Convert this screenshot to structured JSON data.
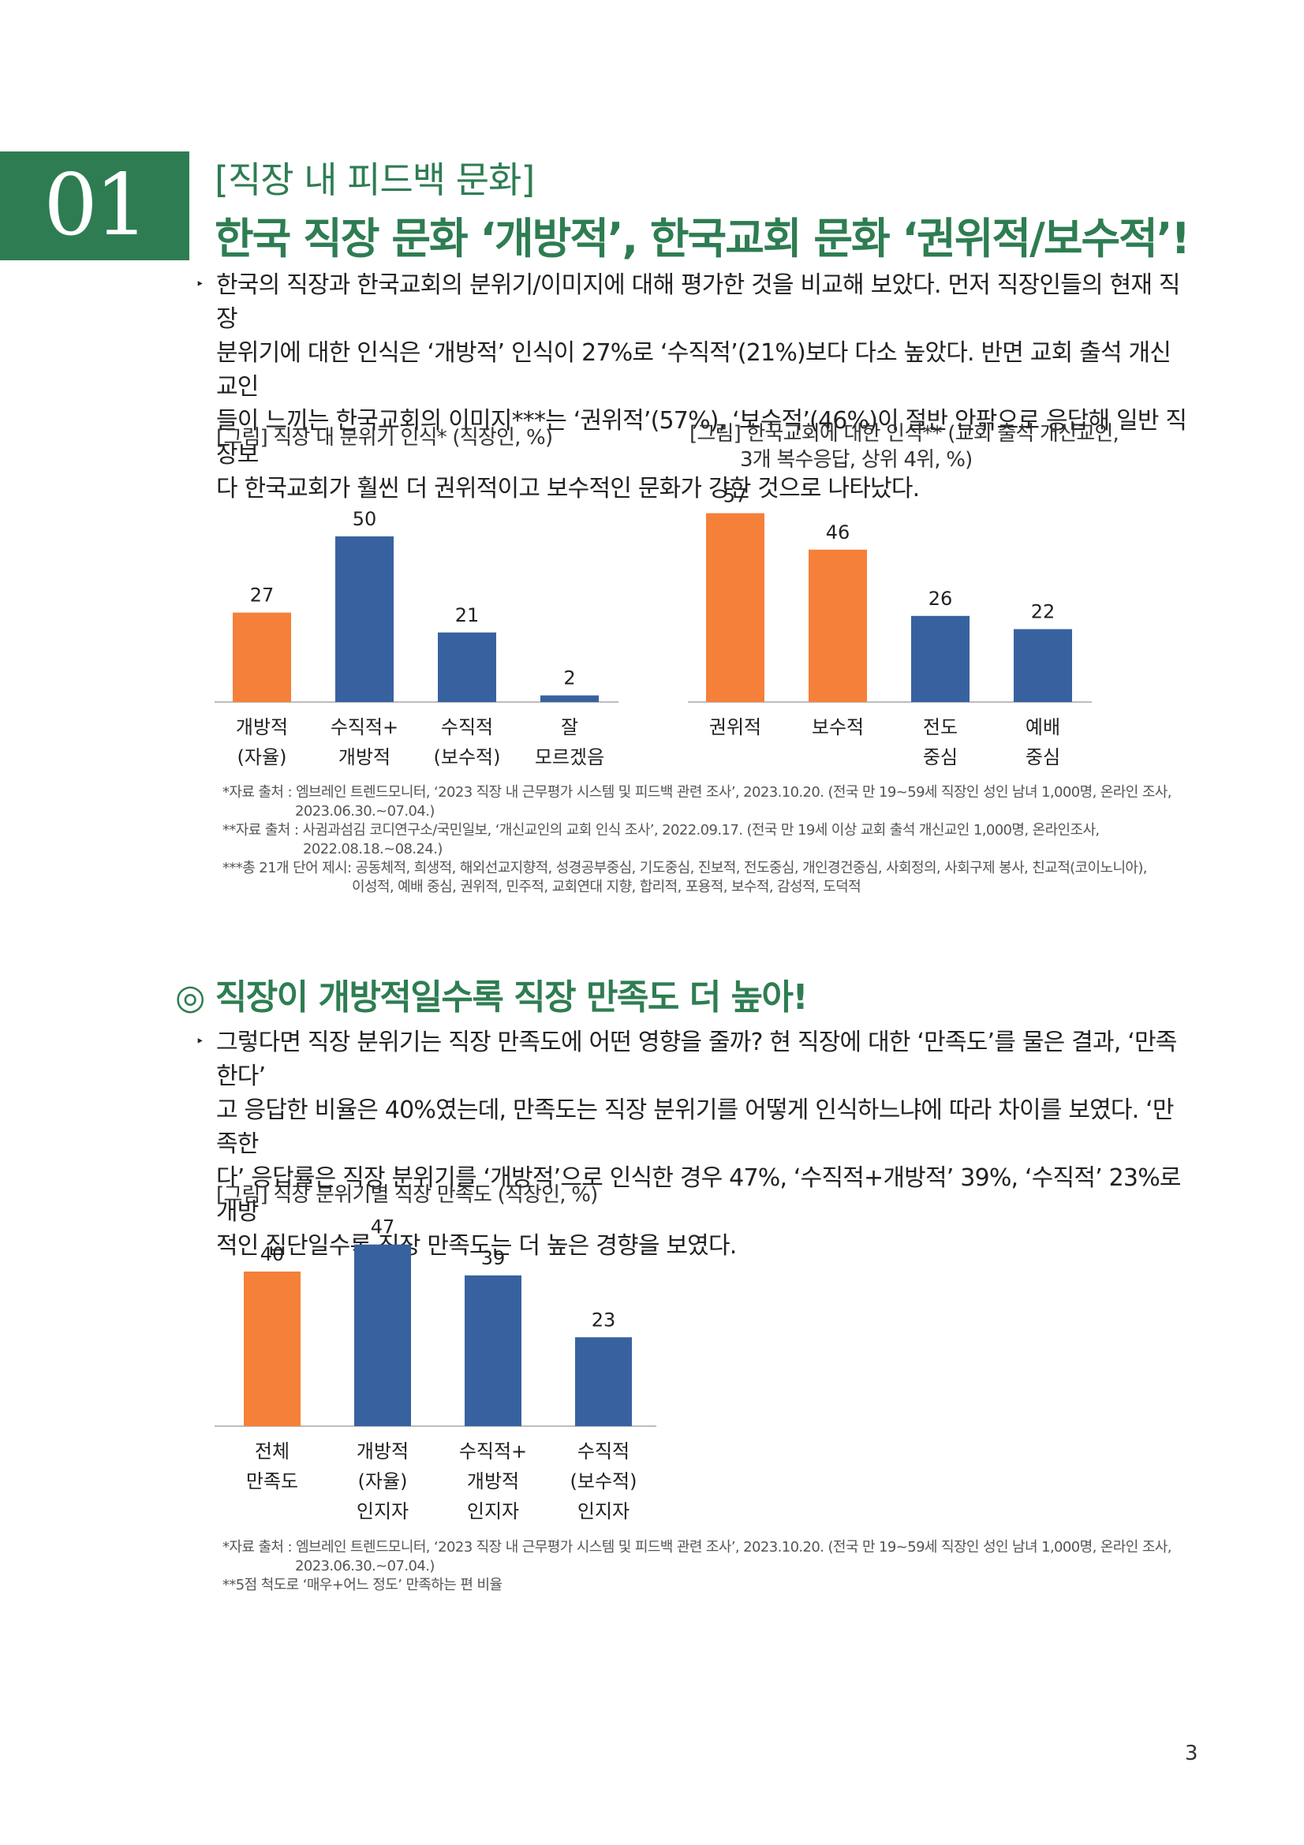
{
  "section": {
    "number": "01",
    "subtitle": "[직장 내 피드백 문화]",
    "title": "한국 직장 문화 ‘개방적’, 한국교회 문화 ‘권위적/보수적’!"
  },
  "para1": {
    "bullet": "‣",
    "lines": [
      "한국의 직장과 한국교회의 분위기/이미지에 대해 평가한 것을 비교해 보았다. 먼저 직장인들의 현재 직장",
      "분위기에 대한 인식은 ‘개방적’ 인식이 27%로 ‘수직적’(21%)보다 다소 높았다. 반면 교회 출석 개신교인",
      "들이 느끼는 한국교회의 이미지***는 ‘권위적’(57%), ‘보수적’(46%)이 절반 안팎으로 응답해 일반 직장보",
      "다 한국교회가 훨씬 더 권위적이고 보수적인 문화가 강한 것으로 나타났다."
    ]
  },
  "chart1_caption": "[그림] 직장 내 분위기 인식* (직장인, %)",
  "chart2_caption": [
    "[그림] 한국교회에 대한 인식** (교회 출석 개신교인,",
    "3개 복수응답, 상위 4위, %)"
  ],
  "chart3_caption": "[그림] 직장 분위기별 직장 만족도 (직장인, %)",
  "chart_data": [
    {
      "type": "bar",
      "title": "[그림] 직장 내 분위기 인식* (직장인, %)",
      "categories": [
        "개방적\n(자율)",
        "수직적+\n개방적",
        "수직적\n(보수적)",
        "잘\n모르겠음"
      ],
      "values": [
        27,
        50,
        21,
        2
      ],
      "colors": [
        "#f5803a",
        "#37629f",
        "#37629f",
        "#37629f"
      ],
      "ylim": [
        0,
        60
      ]
    },
    {
      "type": "bar",
      "title": "[그림] 한국교회에 대한 인식** (교회 출석 개신교인, 3개 복수응답, 상위 4위, %)",
      "categories": [
        "권위적",
        "보수적",
        "전도\n중심",
        "예배\n중심"
      ],
      "values": [
        57,
        46,
        26,
        22
      ],
      "colors": [
        "#f5803a",
        "#f5803a",
        "#37629f",
        "#37629f"
      ],
      "ylim": [
        0,
        60
      ]
    },
    {
      "type": "bar",
      "title": "[그림] 직장 분위기별 직장 만족도 (직장인, %)",
      "categories": [
        "전체\n만족도",
        "개방적\n(자율)\n인지자",
        "수직적+\n개방적\n인지자",
        "수직적\n(보수적)\n인지자"
      ],
      "values": [
        40,
        47,
        39,
        23
      ],
      "colors": [
        "#f5803a",
        "#37629f",
        "#37629f",
        "#37629f"
      ],
      "ylim": [
        0,
        50
      ]
    }
  ],
  "notes1": [
    "*자료 출처 : 엠브레인 트렌드모니터, ‘2023 직장 내 근무평가 시스템 및 피드백 관련 조사’, 2023.10.20. (전국 만 19~59세 직장인 성인 남녀 1,000명, 온라인 조사,",
    "2023.06.30.~07.04.)",
    "**자료 출처 : 사귐과섬김 코디연구소/국민일보, ‘개신교인의 교회 인식 조사’, 2022.09.17. (전국 만 19세 이상 교회 출석 개신교인 1,000명, 온라인조사,",
    "2022.08.18.~08.24.)",
    "***총 21개 단어 제시: 공동체적, 희생적, 해외선교지향적, 성경공부중심, 기도중심, 진보적, 전도중심, 개인경건중심, 사회정의, 사회구제 봉사, 친교적(코이노니아),",
    "이성적, 예배 중심, 권위적, 민주적, 교회연대 지향, 합리적, 포용적, 보수적, 감성적, 도덕적"
  ],
  "section2": {
    "title": "◎ 직장이 개방적일수록 직장 만족도 더 높아!"
  },
  "para2": {
    "bullet": "‣",
    "lines": [
      "그렇다면 직장 분위기는 직장 만족도에 어떤 영향을 줄까? 현 직장에 대한 ‘만족도’를 물은 결과, ‘만족한다’",
      "고 응답한 비율은 40%였는데, 만족도는 직장 분위기를 어떻게 인식하느냐에 따라 차이를 보였다. ‘만족한",
      "다’ 응답률은 직장 분위기를 ‘개방적’으로 인식한 경우 47%, ‘수직적+개방적’ 39%, ‘수직적’ 23%로 개방",
      "적인 집단일수록 직장 만족도는 더 높은 경향을 보였다."
    ]
  },
  "notes2": [
    "*자료 출처 : 엠브레인 트렌드모니터, ‘2023 직장 내 근무평가 시스템 및 피드백 관련 조사’, 2023.10.20. (전국 만 19~59세 직장인 성인 남녀 1,000명, 온라인 조사,",
    "2023.06.30.~07.04.)",
    "**5점 척도로 ‘매우+어느 정도’ 만족하는 편 비율"
  ],
  "page_number": "3"
}
